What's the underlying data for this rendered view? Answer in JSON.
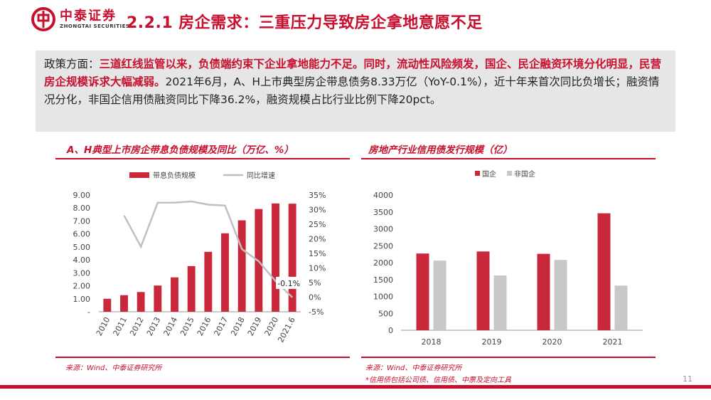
{
  "logo": {
    "name_cn": "中泰证券",
    "name_en": "ZHONGTAI SECURITIES"
  },
  "page_title": "2.2.1 房企需求：三重压力导致房企拿地意愿不足",
  "summary": {
    "prefix": "政策方面：",
    "highlight": "三道红线监管以来，负债端约束下企业拿地能力不足。同时，流动性风险频发，国企、民企融资环境分化明显，民营房企规模诉求大幅减弱。",
    "rest": "2021年6月，A、H上市典型房企带息债务8.33万亿（YoY-0.1%），近十年来首次同比负增长；融资情况分化，非国企信用债融资同比下降36.2%，融资规模占比行业比例下降20pct。"
  },
  "colors": {
    "brand_red": "#c8102e",
    "bar_red": "#c9283b",
    "bar_gray": "#c8c8c8",
    "line_gray": "#c0c0c0"
  },
  "chart_data": [
    {
      "type": "bar",
      "title": "A、H典型上市房企带息负债规模及同比（万亿、%）",
      "categories": [
        "2010",
        "2011",
        "2012",
        "2013",
        "2014",
        "2015",
        "2016",
        "2017",
        "2018",
        "2019",
        "2020",
        "2021.6"
      ],
      "series": [
        {
          "name": "带息负债规模",
          "type": "bar",
          "axis": "left",
          "values": [
            1.0,
            1.28,
            1.52,
            2.02,
            2.65,
            3.52,
            4.62,
            6.05,
            7.05,
            7.92,
            8.35,
            8.33
          ]
        },
        {
          "name": "同比增速",
          "type": "line",
          "axis": "right",
          "values": [
            null,
            28.0,
            17.3,
            32.4,
            32.4,
            32.8,
            31.7,
            31.4,
            16.5,
            12.3,
            5.5,
            -0.1
          ]
        }
      ],
      "y_left": {
        "ylim": [
          0,
          9
        ],
        "ticks": [
          "-",
          "1.00",
          "2.00",
          "3.00",
          "4.00",
          "5.00",
          "6.00",
          "7.00",
          "8.00",
          "9.00"
        ]
      },
      "y_right": {
        "ylim": [
          -5,
          35
        ],
        "ticks": [
          "-5%",
          "0%",
          "5%",
          "10%",
          "15%",
          "20%",
          "25%",
          "30%",
          "35%"
        ]
      },
      "annotation": "-0.1%",
      "legend_position": "top",
      "grid": false,
      "source": "来源：Wind、中泰证券研究所"
    },
    {
      "type": "bar",
      "title": "房地产行业信用债发行规模（亿）",
      "categories": [
        "2018",
        "2019",
        "2020",
        "2021"
      ],
      "series": [
        {
          "name": "国企",
          "values": [
            2270,
            2330,
            2260,
            3460
          ]
        },
        {
          "name": "非国企",
          "values": [
            2060,
            1620,
            2080,
            1320
          ]
        }
      ],
      "ylim": [
        0,
        4000
      ],
      "y_ticks": [
        "0",
        "500",
        "1000",
        "1500",
        "2000",
        "2500",
        "3000",
        "3500",
        "4000"
      ],
      "legend_position": "top",
      "grid": false,
      "source": "来源：Wind、中泰证券研究所",
      "footnote": "*信用债包括公司债、信用债、中票及定向工具"
    }
  ],
  "page_number": "11"
}
